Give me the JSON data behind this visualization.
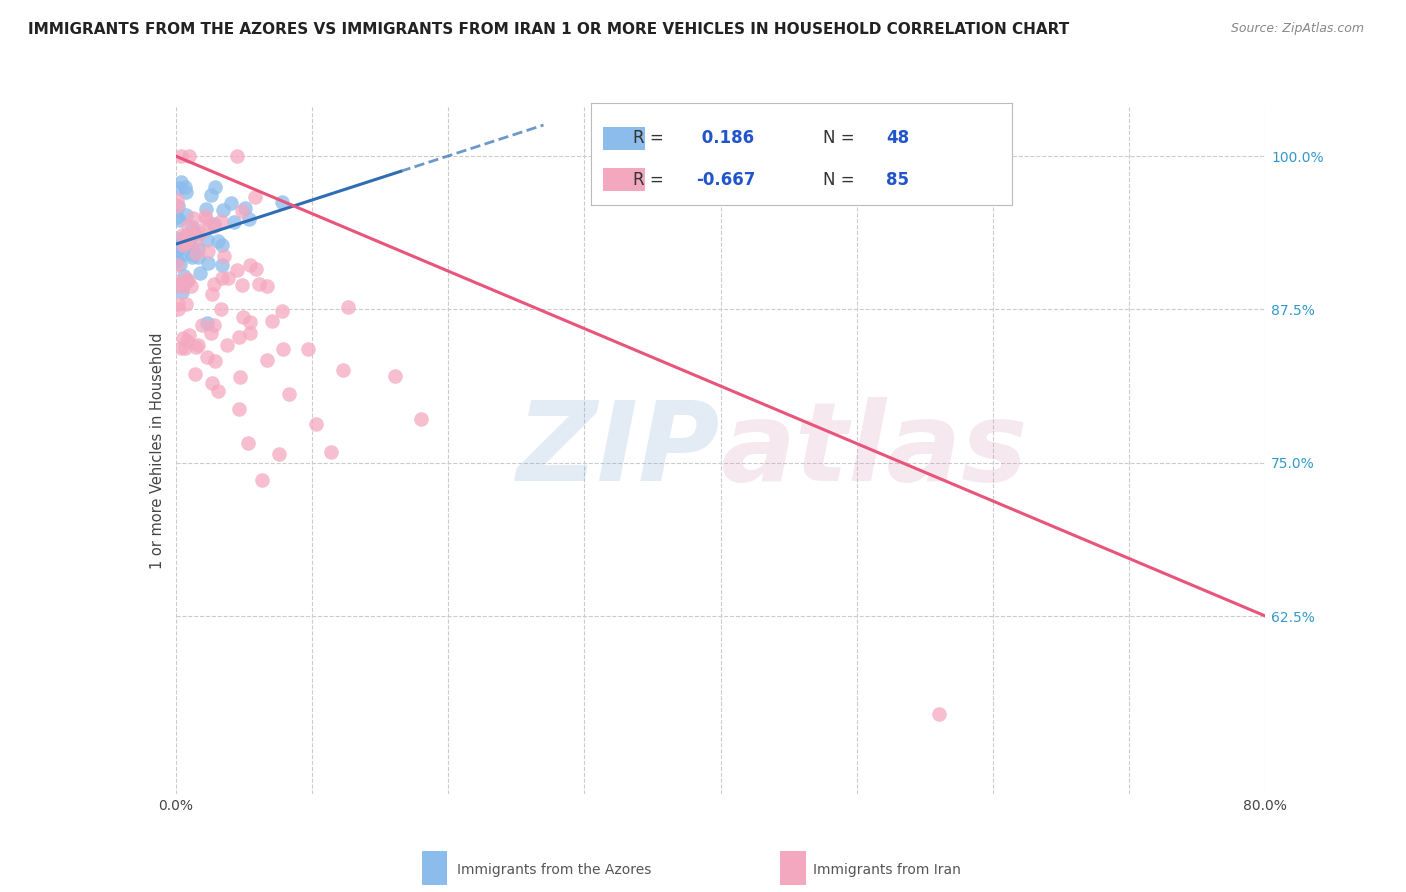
{
  "title": "IMMIGRANTS FROM THE AZORES VS IMMIGRANTS FROM IRAN 1 OR MORE VEHICLES IN HOUSEHOLD CORRELATION CHART",
  "source": "Source: ZipAtlas.com",
  "ylabel": "1 or more Vehicles in Household",
  "xlim": [
    0.0,
    0.8
  ],
  "ylim": [
    0.48,
    1.04
  ],
  "xticks": [
    0.0,
    0.1,
    0.2,
    0.3,
    0.4,
    0.5,
    0.6,
    0.7,
    0.8
  ],
  "yticks_right": [
    0.625,
    0.75,
    0.875,
    1.0
  ],
  "ytick_right_labels": [
    "62.5%",
    "75.0%",
    "87.5%",
    "100.0%"
  ],
  "azores_R": 0.186,
  "azores_N": 48,
  "iran_R": -0.667,
  "iran_N": 85,
  "azores_color": "#8BBCEC",
  "iran_color": "#F4A8C0",
  "azores_line_color": "#2E6DB4",
  "iran_line_color": "#E8547A",
  "watermark_zip_color": "#6699CC",
  "watermark_atlas_color": "#CC88AA",
  "background_color": "#ffffff",
  "grid_color": "#cccccc",
  "title_fontsize": 11,
  "source_fontsize": 9,
  "legend_r_color": "#2255AA",
  "legend_n_color": "#2255AA"
}
